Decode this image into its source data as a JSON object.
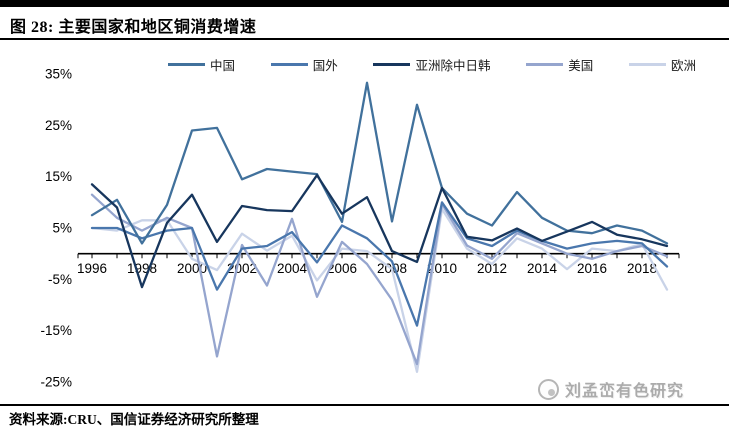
{
  "header": {
    "title": "图 28:  主要国家和地区铜消费增速"
  },
  "footer": {
    "source": "资料来源:CRU、国信证券经济研究所整理"
  },
  "watermark": {
    "text": "刘孟峦有色研究"
  },
  "chart_data": {
    "type": "line",
    "title": "主要国家和地区铜消费增速",
    "xlabel": "",
    "ylabel": "",
    "ylim": [
      -27,
      37
    ],
    "grid": false,
    "legend_position": "top",
    "x": [
      1996,
      1997,
      1998,
      1999,
      2000,
      2001,
      2002,
      2003,
      2004,
      2005,
      2006,
      2007,
      2008,
      2009,
      2010,
      2011,
      2012,
      2013,
      2014,
      2015,
      2016,
      2017,
      2018,
      2019
    ],
    "x_tick_labels": [
      "1996",
      "1998",
      "2000",
      "2002",
      "2004",
      "2006",
      "2008",
      "2010",
      "2012",
      "2014",
      "2016",
      "2018"
    ],
    "y_tick_labels": [
      "35%",
      "25%",
      "15%",
      "5%",
      "-5%",
      "-15%",
      "-25%"
    ],
    "y_tick_values": [
      35,
      25,
      15,
      5,
      -5,
      -15,
      -25
    ],
    "series": [
      {
        "key": "china",
        "name": "中国",
        "color": "#41719C",
        "values": [
          7.5,
          10.5,
          2.0,
          9.5,
          24.0,
          24.5,
          14.5,
          16.5,
          16.0,
          15.5,
          6.2,
          33.3,
          6.3,
          29.0,
          12.8,
          7.8,
          5.5,
          12.0,
          7.0,
          4.5,
          4.0,
          5.5,
          4.5,
          2.0
        ]
      },
      {
        "key": "foreign",
        "name": "国外",
        "color": "#4A77AD",
        "values": [
          5.0,
          5.0,
          3.0,
          4.5,
          5.0,
          -7.0,
          1.0,
          1.5,
          4.2,
          -1.7,
          5.5,
          3.0,
          -1.5,
          -14.0,
          10.0,
          3.0,
          1.5,
          4.5,
          2.5,
          1.0,
          2.0,
          2.5,
          2.0,
          -2.5
        ]
      },
      {
        "key": "asia-ex-china-japan-korea",
        "name": "亚洲除中日韩",
        "color": "#17365D",
        "values": [
          13.5,
          9.0,
          -6.5,
          6.0,
          11.5,
          2.3,
          9.3,
          8.5,
          8.3,
          15.3,
          7.8,
          11.0,
          0.5,
          -1.6,
          12.8,
          3.3,
          2.6,
          4.9,
          2.5,
          4.3,
          6.2,
          3.7,
          2.8,
          1.5
        ]
      },
      {
        "key": "usa",
        "name": "美国",
        "color": "#95A5CE",
        "values": [
          11.5,
          7.0,
          4.5,
          7.0,
          5.0,
          -20.0,
          1.7,
          -6.2,
          6.8,
          -8.4,
          2.3,
          -2.0,
          -9.0,
          -21.5,
          9.7,
          1.6,
          -1.0,
          4.0,
          2.0,
          0.0,
          -1.0,
          0.5,
          1.5,
          -0.5
        ]
      },
      {
        "key": "europe",
        "name": "欧洲",
        "color": "#C9D3E8",
        "values": [
          5.0,
          4.5,
          6.5,
          6.5,
          -1.0,
          -3.2,
          3.9,
          0.6,
          3.5,
          -5.2,
          1.0,
          0.5,
          -3.0,
          -23.0,
          8.7,
          1.0,
          -2.0,
          3.0,
          1.0,
          -3.0,
          1.0,
          0.5,
          1.9,
          -7.0
        ]
      }
    ]
  }
}
